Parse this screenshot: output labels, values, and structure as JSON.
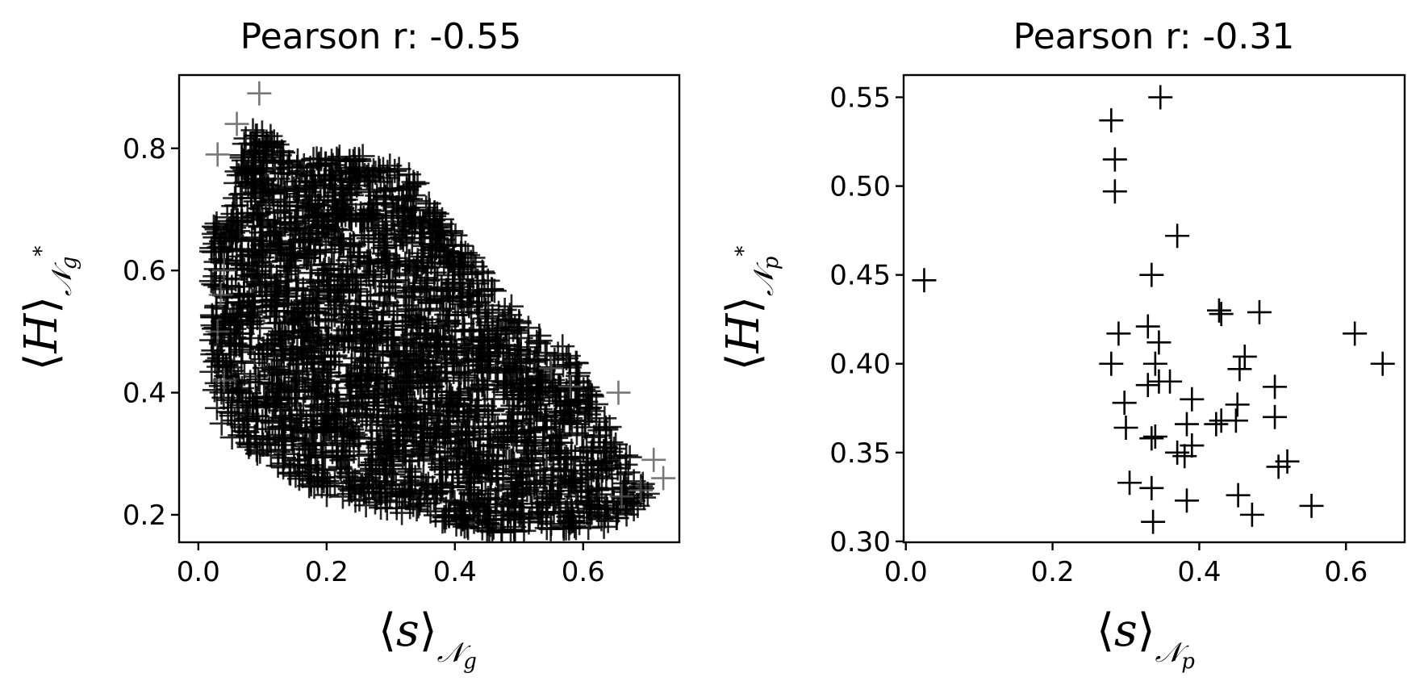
{
  "chart_data": [
    {
      "type": "scatter",
      "title": "Pearson r: -0.55",
      "xlabel": "⟨s⟩𝒩g",
      "ylabel": "⟨H⟩𝒩g*",
      "xlim": [
        -0.03,
        0.75
      ],
      "ylim": [
        0.155,
        0.92
      ],
      "xticks": [
        0.0,
        0.2,
        0.4,
        0.6
      ],
      "xtick_labels": [
        "0.0",
        "0.2",
        "0.4",
        "0.6"
      ],
      "yticks": [
        0.2,
        0.4,
        0.6,
        0.8
      ],
      "ytick_labels": [
        "0.2",
        "0.4",
        "0.6",
        "0.8"
      ],
      "grid": false,
      "marker": "+",
      "marker_color": "#000000",
      "dense_cloud_polygon": [
        [
          0.02,
          0.67
        ],
        [
          0.05,
          0.7
        ],
        [
          0.07,
          0.83
        ],
        [
          0.11,
          0.83
        ],
        [
          0.15,
          0.78
        ],
        [
          0.25,
          0.79
        ],
        [
          0.33,
          0.76
        ],
        [
          0.43,
          0.62
        ],
        [
          0.52,
          0.5
        ],
        [
          0.58,
          0.47
        ],
        [
          0.63,
          0.37
        ],
        [
          0.67,
          0.3
        ],
        [
          0.71,
          0.23
        ],
        [
          0.64,
          0.18
        ],
        [
          0.45,
          0.17
        ],
        [
          0.2,
          0.23
        ],
        [
          0.04,
          0.33
        ],
        [
          0.02,
          0.4
        ]
      ],
      "outlier_points": [
        [
          0.095,
          0.89
        ],
        [
          0.06,
          0.84
        ],
        [
          0.03,
          0.79
        ],
        [
          0.655,
          0.4
        ],
        [
          0.71,
          0.29
        ],
        [
          0.725,
          0.26
        ],
        [
          0.69,
          0.24
        ],
        [
          0.66,
          0.23
        ],
        [
          0.04,
          0.6
        ],
        [
          0.03,
          0.5
        ],
        [
          0.04,
          0.42
        ],
        [
          0.035,
          0.56
        ],
        [
          0.55,
          0.44
        ],
        [
          0.58,
          0.41
        ]
      ]
    },
    {
      "type": "scatter",
      "title": "Pearson r: -0.31",
      "xlabel": "⟨s⟩𝒩p",
      "ylabel": "⟨H⟩𝒩p*",
      "xlim": [
        -0.003,
        0.68
      ],
      "ylim": [
        0.2995,
        0.5625
      ],
      "xticks": [
        0.0,
        0.2,
        0.4,
        0.6
      ],
      "xtick_labels": [
        "0.0",
        "0.2",
        "0.4",
        "0.6"
      ],
      "yticks": [
        0.3,
        0.35,
        0.4,
        0.45,
        0.5,
        0.55
      ],
      "ytick_labels": [
        "0.30",
        "0.35",
        "0.40",
        "0.45",
        "0.50",
        "0.55"
      ],
      "grid": false,
      "marker": "+",
      "marker_color": "#000000",
      "points": [
        [
          0.025,
          0.447
        ],
        [
          0.28,
          0.537
        ],
        [
          0.285,
          0.515
        ],
        [
          0.285,
          0.497
        ],
        [
          0.347,
          0.55
        ],
        [
          0.37,
          0.472
        ],
        [
          0.335,
          0.45
        ],
        [
          0.427,
          0.43
        ],
        [
          0.43,
          0.428
        ],
        [
          0.482,
          0.429
        ],
        [
          0.612,
          0.417
        ],
        [
          0.65,
          0.4
        ],
        [
          0.33,
          0.421
        ],
        [
          0.29,
          0.417
        ],
        [
          0.345,
          0.412
        ],
        [
          0.28,
          0.4
        ],
        [
          0.34,
          0.4
        ],
        [
          0.462,
          0.404
        ],
        [
          0.455,
          0.397
        ],
        [
          0.345,
          0.39
        ],
        [
          0.36,
          0.39
        ],
        [
          0.33,
          0.388
        ],
        [
          0.503,
          0.387
        ],
        [
          0.39,
          0.38
        ],
        [
          0.298,
          0.378
        ],
        [
          0.452,
          0.377
        ],
        [
          0.383,
          0.366
        ],
        [
          0.43,
          0.368
        ],
        [
          0.423,
          0.366
        ],
        [
          0.45,
          0.368
        ],
        [
          0.503,
          0.37
        ],
        [
          0.3,
          0.364
        ],
        [
          0.34,
          0.359
        ],
        [
          0.335,
          0.358
        ],
        [
          0.37,
          0.35
        ],
        [
          0.38,
          0.348
        ],
        [
          0.39,
          0.354
        ],
        [
          0.52,
          0.345
        ],
        [
          0.508,
          0.342
        ],
        [
          0.305,
          0.333
        ],
        [
          0.335,
          0.33
        ],
        [
          0.383,
          0.323
        ],
        [
          0.453,
          0.326
        ],
        [
          0.472,
          0.315
        ],
        [
          0.553,
          0.32
        ],
        [
          0.337,
          0.311
        ]
      ]
    }
  ]
}
